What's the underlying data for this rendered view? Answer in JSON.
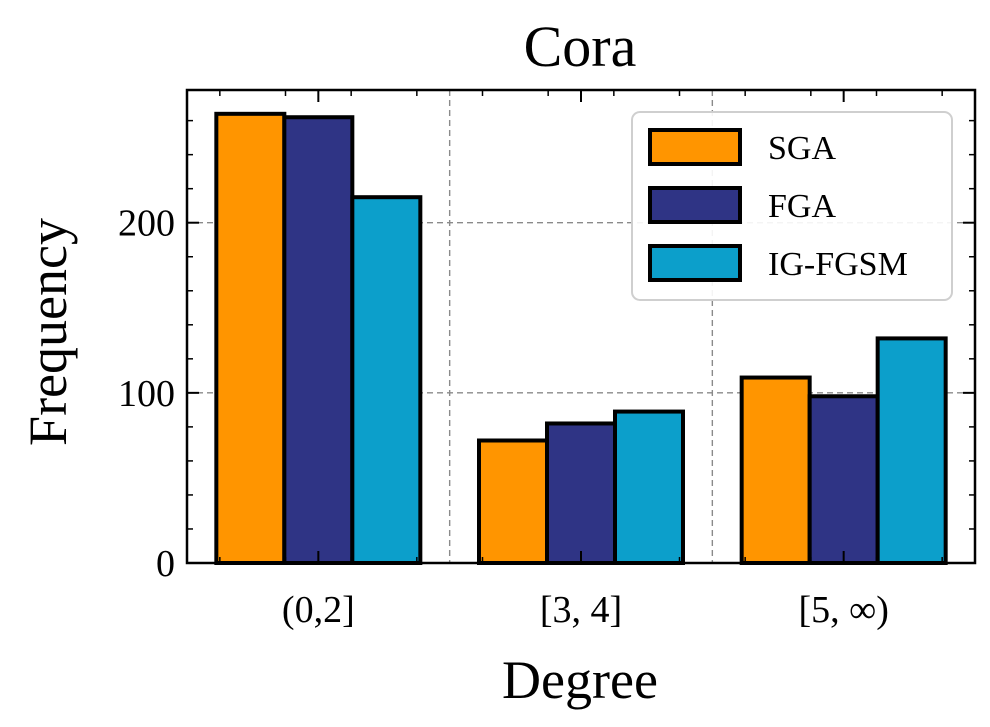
{
  "chart_data": {
    "type": "bar",
    "title": "Cora",
    "xlabel": "Degree",
    "ylabel": "Frequency",
    "categories": [
      "(0,2]",
      "[3, 4]",
      "[5, ∞)"
    ],
    "series": [
      {
        "name": "SGA",
        "values": [
          264,
          72,
          109
        ],
        "color": "#FF9500"
      },
      {
        "name": "FGA",
        "values": [
          262,
          82,
          98
        ],
        "color": "#2F3485"
      },
      {
        "name": "IG-FGSM",
        "values": [
          215,
          89,
          132
        ],
        "color": "#0C9FCB"
      }
    ],
    "ylim": [
      0,
      278
    ],
    "yticks": [
      0,
      100,
      200
    ],
    "grid": true,
    "legend_position": "top-right"
  }
}
